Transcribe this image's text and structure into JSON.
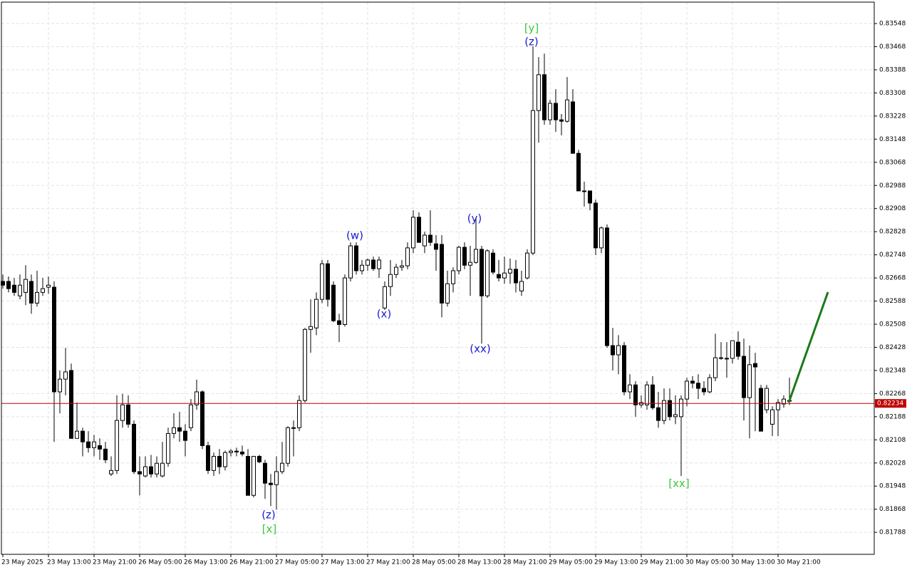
{
  "chart_data": {
    "type": "candlestick",
    "categories": [
      "23 May 2025",
      null,
      null,
      null,
      null,
      null,
      null,
      null,
      "23 May 13:00",
      null,
      null,
      null,
      null,
      null,
      null,
      null,
      "23 May 21:00",
      null,
      null,
      null,
      null,
      null,
      null,
      null,
      "26 May 05:00",
      null,
      null,
      null,
      null,
      null,
      null,
      null,
      "26 May 13:00",
      null,
      null,
      null,
      null,
      null,
      null,
      null,
      "26 May 21:00",
      null,
      null,
      null,
      null,
      null,
      null,
      null,
      "27 May 05:00",
      null,
      null,
      null,
      null,
      null,
      null,
      null,
      "27 May 13:00",
      null,
      null,
      null,
      null,
      null,
      null,
      null,
      "27 May 21:00",
      null,
      null,
      null,
      null,
      null,
      null,
      null,
      "28 May 05:00",
      null,
      null,
      null,
      null,
      null,
      null,
      null,
      "28 May 13:00",
      null,
      null,
      null,
      null,
      null,
      null,
      null,
      "28 May 21:00",
      null,
      null,
      null,
      null,
      null,
      null,
      null,
      "29 May 05:00",
      null,
      null,
      null,
      null,
      null,
      null,
      null,
      "29 May 13:00",
      null,
      null,
      null,
      null,
      null,
      null,
      null,
      "29 May 21:00",
      null,
      null,
      null,
      null,
      null,
      null,
      null,
      "30 May 05:00",
      null,
      null,
      null,
      null,
      null,
      null,
      null,
      "30 May 13:00",
      null,
      null,
      null,
      null,
      null,
      null,
      null,
      "30 May 21:00",
      null,
      null
    ],
    "open": [
      0.82656,
      0.82656,
      0.82643,
      0.82606,
      0.82618,
      0.82656,
      0.82581,
      0.82618,
      0.82636,
      0.82636,
      0.82274,
      0.82318,
      0.82348,
      0.82113,
      0.82138,
      0.82101,
      0.82081,
      0.82088,
      0.82076,
      0.8199,
      0.82002,
      0.82175,
      0.82229,
      0.82162,
      0.81998,
      0.81983,
      0.82015,
      0.8199,
      0.81983,
      0.82027,
      0.8213,
      0.8215,
      0.82138,
      0.8215,
      0.82229,
      0.82274,
      0.82088,
      0.82002,
      0.82051,
      0.82015,
      0.82064,
      0.82069,
      0.82066,
      0.82051,
      0.81916,
      0.82051,
      0.82027,
      0.81958,
      0.81953,
      0.81998,
      0.82027,
      0.8215,
      0.8215,
      0.82244,
      0.8249,
      0.82495,
      0.82594,
      0.82717,
      0.82643,
      0.8252,
      0.82507,
      0.82668,
      0.82779,
      0.82693,
      0.82712,
      0.8273,
      0.827,
      0.82564,
      0.82638,
      0.8268,
      0.82705,
      0.8271,
      0.82772,
      0.82878,
      0.82779,
      0.82816,
      0.82786,
      0.82784,
      0.82581,
      0.82648,
      0.82693,
      0.82774,
      0.82712,
      0.82722,
      0.82767,
      0.82606,
      0.82754,
      0.8268,
      0.82668,
      0.82685,
      0.82698,
      0.82623,
      0.82668,
      0.82754,
      0.83247,
      0.83371,
      0.83215,
      0.83272,
      0.83215,
      0.8321,
      0.83277,
      0.83099,
      0.82969,
      0.82969,
      0.82927,
      0.82772,
      0.82841,
      0.82434,
      0.82402,
      0.82434,
      0.82274,
      0.82298,
      0.82229,
      0.82229,
      0.82298,
      0.82219,
      0.82175,
      0.82244,
      0.82188,
      0.82188,
      0.82249,
      0.82311,
      0.82304,
      0.82286,
      0.82274,
      0.82323,
      0.82392,
      0.8239,
      0.8239,
      0.82446,
      0.82397,
      0.82254,
      0.82372,
      0.82286,
      0.82212,
      0.82162,
      0.82212,
      0.82232,
      0.82244
    ],
    "high": [
      0.8268,
      0.82673,
      0.82668,
      0.8268,
      0.82712,
      0.8268,
      0.82693,
      0.82668,
      0.82673,
      0.82656,
      0.82348,
      0.82426,
      0.82372,
      0.82237,
      0.8215,
      0.82138,
      0.82125,
      0.82113,
      0.82101,
      0.82051,
      0.82262,
      0.82267,
      0.82262,
      0.82175,
      0.82051,
      0.82051,
      0.82056,
      0.82051,
      0.82101,
      0.8215,
      0.822,
      0.82205,
      0.82162,
      0.82249,
      0.82316,
      0.82279,
      0.82101,
      0.82064,
      0.82076,
      0.82071,
      0.82076,
      0.82081,
      0.82088,
      0.82076,
      0.82051,
      0.82056,
      0.82039,
      0.8199,
      0.82051,
      0.82101,
      0.82155,
      0.82175,
      0.82262,
      0.82495,
      0.82594,
      0.82618,
      0.8273,
      0.8273,
      0.82656,
      0.82544,
      0.8268,
      0.82791,
      0.82791,
      0.8273,
      0.82735,
      0.82742,
      0.82742,
      0.82656,
      0.8273,
      0.82717,
      0.8273,
      0.82791,
      0.82902,
      0.82895,
      0.82828,
      0.82902,
      0.82816,
      0.82816,
      0.82693,
      0.82705,
      0.82779,
      0.82791,
      0.82779,
      0.82878,
      0.82779,
      0.82767,
      0.82767,
      0.8273,
      0.82742,
      0.82735,
      0.8273,
      0.82693,
      0.82767,
      0.83469,
      0.83432,
      0.83444,
      0.83284,
      0.83321,
      0.83235,
      0.83363,
      0.83321,
      0.83111,
      0.83001,
      0.82969,
      0.82939,
      0.82846,
      0.82853,
      0.82495,
      0.8247,
      0.82446,
      0.82335,
      0.82311,
      0.82262,
      0.82311,
      0.82328,
      0.82274,
      0.82286,
      0.82286,
      0.82262,
      0.82262,
      0.82323,
      0.82328,
      0.82335,
      0.82311,
      0.82335,
      0.82475,
      0.82446,
      0.82446,
      0.82451,
      0.82483,
      0.82458,
      0.82434,
      0.82409,
      0.82298,
      0.82298,
      0.82224,
      0.82249,
      0.82262,
      0.82323
    ],
    "low": [
      0.82631,
      0.82618,
      0.82606,
      0.82594,
      0.82574,
      0.82544,
      0.82569,
      0.82606,
      0.82613,
      0.82101,
      0.822,
      0.82262,
      0.82113,
      0.82113,
      0.82051,
      0.82064,
      0.82051,
      0.82039,
      0.82027,
      0.81983,
      0.8199,
      0.8215,
      0.8215,
      0.8199,
      0.81916,
      0.81978,
      0.81978,
      0.81978,
      0.81978,
      0.82015,
      0.82113,
      0.82101,
      0.82051,
      0.82138,
      0.82212,
      0.82076,
      0.8199,
      0.81983,
      0.8199,
      0.82002,
      0.82051,
      0.82051,
      0.82051,
      0.81916,
      0.81909,
      0.82027,
      0.81904,
      0.81879,
      0.81867,
      0.8199,
      0.82015,
      0.82051,
      0.82138,
      0.82237,
      0.82409,
      0.8247,
      0.82581,
      0.82569,
      0.82515,
      0.82446,
      0.825,
      0.82656,
      0.8268,
      0.8268,
      0.82693,
      0.82693,
      0.82668,
      0.82557,
      0.82606,
      0.82668,
      0.82693,
      0.82698,
      0.82754,
      0.82791,
      0.82754,
      0.82779,
      0.82693,
      0.82532,
      0.82569,
      0.82618,
      0.8268,
      0.82698,
      0.82606,
      0.82717,
      0.82441,
      0.82599,
      0.8268,
      0.82656,
      0.82648,
      0.82648,
      0.82618,
      0.82606,
      0.82663,
      0.82747,
      0.83136,
      0.83198,
      0.83198,
      0.83173,
      0.83161,
      0.83205,
      0.83099,
      0.82969,
      0.82915,
      0.82902,
      0.82747,
      0.82754,
      0.82426,
      0.82348,
      0.82335,
      0.82262,
      0.82249,
      0.82188,
      0.82219,
      0.82212,
      0.82212,
      0.8215,
      0.82162,
      0.82175,
      0.82162,
      0.81983,
      0.82224,
      0.82286,
      0.82249,
      0.82262,
      0.82269,
      0.82311,
      0.82385,
      0.82323,
      0.82372,
      0.82385,
      0.82175,
      0.82113,
      0.82138,
      0.82138,
      0.822,
      0.82121,
      0.82121,
      0.82219,
      0.82229
    ],
    "close": [
      0.82643,
      0.82631,
      0.82618,
      0.82643,
      0.82663,
      0.82581,
      0.82618,
      0.82631,
      0.82643,
      0.82274,
      0.82318,
      0.82343,
      0.82113,
      0.82138,
      0.82101,
      0.82081,
      0.82101,
      0.82076,
      0.82039,
      0.82002,
      0.82175,
      0.82229,
      0.82162,
      0.81998,
      0.8199,
      0.82015,
      0.8199,
      0.82027,
      0.82027,
      0.8213,
      0.8215,
      0.82138,
      0.82106,
      0.82229,
      0.82274,
      0.82088,
      0.82002,
      0.82051,
      0.82015,
      0.82064,
      0.82069,
      0.82066,
      0.82059,
      0.81916,
      0.82051,
      0.82032,
      0.81958,
      0.81953,
      0.81998,
      0.82027,
      0.8215,
      0.8215,
      0.82244,
      0.8249,
      0.825,
      0.82594,
      0.82717,
      0.82594,
      0.8252,
      0.82507,
      0.82668,
      0.82779,
      0.82693,
      0.82712,
      0.8273,
      0.827,
      0.8273,
      0.82638,
      0.8268,
      0.82705,
      0.8271,
      0.82772,
      0.82878,
      0.82791,
      0.82816,
      0.82791,
      0.82767,
      0.82581,
      0.82648,
      0.82693,
      0.82774,
      0.82712,
      0.82722,
      0.82767,
      0.82606,
      0.82762,
      0.82688,
      0.82668,
      0.82685,
      0.82698,
      0.82651,
      0.82656,
      0.82754,
      0.83247,
      0.83371,
      0.83215,
      0.83272,
      0.83215,
      0.8321,
      0.83284,
      0.83099,
      0.82969,
      0.82969,
      0.82927,
      0.82772,
      0.82841,
      0.82434,
      0.82402,
      0.82434,
      0.82274,
      0.82298,
      0.82229,
      0.82237,
      0.82298,
      0.82219,
      0.82175,
      0.82244,
      0.82188,
      0.82195,
      0.82249,
      0.82311,
      0.82304,
      0.82286,
      0.82274,
      0.82323,
      0.82392,
      0.8239,
      0.8239,
      0.82451,
      0.82397,
      0.82254,
      0.82368,
      0.8236,
      0.82138,
      0.82286,
      0.82212,
      0.82237,
      0.82249,
      0.82244
    ],
    "up_color": "#ffffff",
    "down_color": "#000000",
    "ylim": [
      0.81712,
      0.83622
    ],
    "yticks": [
      0.83548,
      0.83468,
      0.83388,
      0.83308,
      0.83228,
      0.83148,
      0.83068,
      0.82988,
      0.82908,
      0.82828,
      0.82748,
      0.82668,
      0.82588,
      0.82508,
      0.82428,
      0.82348,
      0.82268,
      0.82188,
      0.82108,
      0.82028,
      0.81948,
      0.81868,
      0.81788
    ],
    "grid": true,
    "current_price": 0.82234,
    "current_price_color": "#c00000",
    "annotations": [
      {
        "text": "(w)",
        "color": "#1a1ad6"
      },
      {
        "text": "(x)",
        "color": "#1a1ad6"
      },
      {
        "text": "(y)",
        "color": "#1a1ad6"
      },
      {
        "text": "(xx)",
        "color": "#1a1ad6"
      },
      {
        "text": "[y]",
        "color": "#3cc83c"
      },
      {
        "text": "(z)",
        "color": "#1a1ad6"
      },
      {
        "text": "(z)",
        "color": "#1a1ad6"
      },
      {
        "text": "[x]",
        "color": "#3cc83c"
      },
      {
        "text": "[xx]",
        "color": "#3cc83c"
      }
    ]
  }
}
